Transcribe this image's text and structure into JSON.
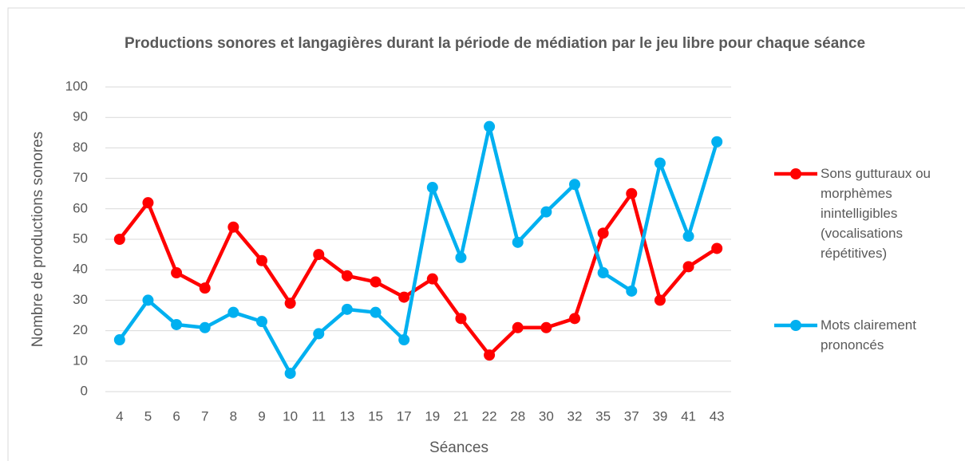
{
  "chart_data": {
    "type": "line",
    "title": "Productions sonores et langagières durant la période de médiation par le jeu libre pour chaque séance",
    "x_label": "Séances",
    "y_label": "Nombre de productions sonores",
    "categories": [
      "4",
      "5",
      "6",
      "7",
      "8",
      "9",
      "10",
      "11",
      "13",
      "15",
      "17",
      "19",
      "21",
      "22",
      "28",
      "30",
      "32",
      "35",
      "37",
      "39",
      "41",
      "43"
    ],
    "series": [
      {
        "name": "Sons gutturaux ou morphèmes inintelligibles (vocalisations répétitives)",
        "color": "#ff0000",
        "values": [
          50,
          62,
          39,
          34,
          54,
          43,
          29,
          45,
          38,
          36,
          31,
          37,
          24,
          12,
          21,
          21,
          24,
          52,
          65,
          30,
          41,
          47
        ]
      },
      {
        "name": "Mots clairement prononcés",
        "color": "#00b0f0",
        "values": [
          17,
          30,
          22,
          21,
          26,
          23,
          6,
          19,
          27,
          26,
          17,
          67,
          44,
          87,
          49,
          59,
          68,
          39,
          33,
          75,
          51,
          82
        ]
      }
    ],
    "ylim": [
      0,
      100
    ],
    "yticks": [
      0,
      10,
      20,
      30,
      40,
      50,
      60,
      70,
      80,
      90,
      100
    ],
    "grid": true,
    "legend": "right"
  }
}
